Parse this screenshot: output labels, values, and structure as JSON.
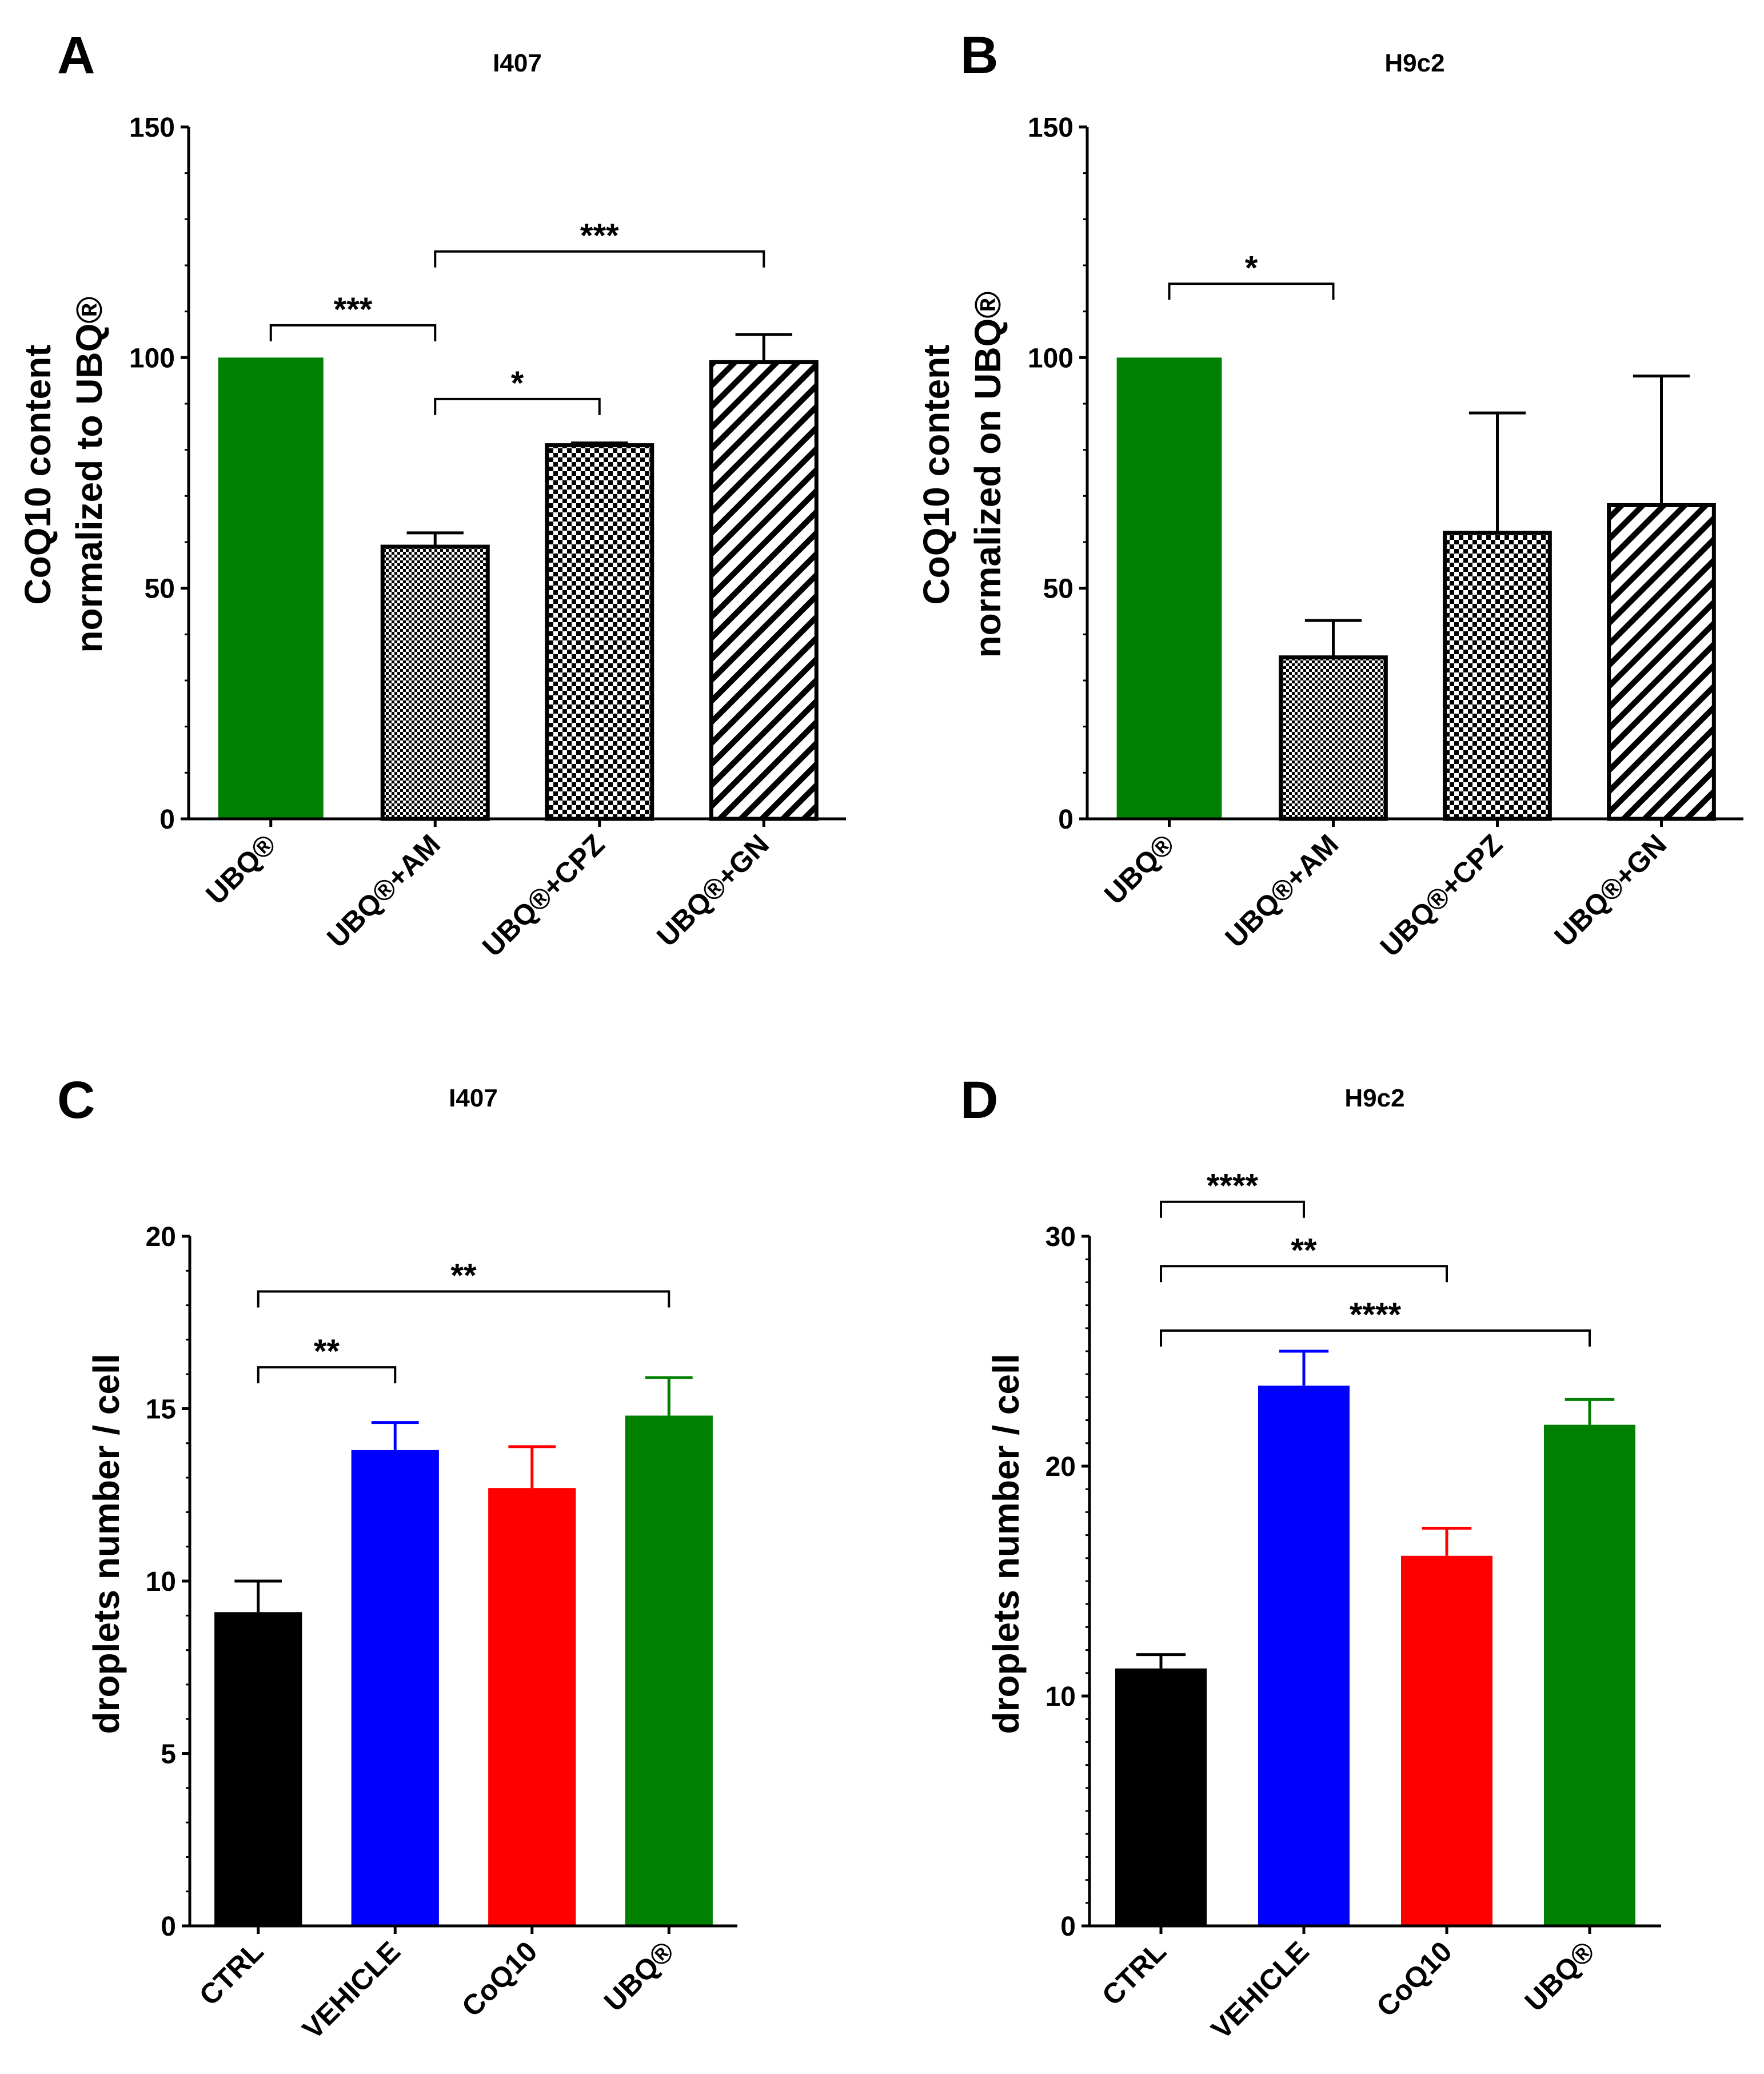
{
  "chart_data": [
    {
      "type": "bar",
      "panel": "A",
      "title": "I407",
      "ylabel": [
        "CoQ10 content",
        "normalized to UBQ®"
      ],
      "ylim": [
        0,
        150
      ],
      "yticks": [
        0,
        50,
        100,
        150
      ],
      "categories": [
        "UBQ®",
        "UBQ®+AM",
        "UBQ®+CPZ",
        "UBQ®+GN"
      ],
      "values": [
        100,
        59,
        81,
        99
      ],
      "errors": [
        0,
        3,
        0.5,
        6
      ],
      "fills": [
        "green",
        "dense-check",
        "check",
        "diagonal"
      ],
      "colors": {
        "green": "#008000",
        "outline": "#000000"
      },
      "significance": [
        {
          "from": 0,
          "to": 1,
          "y": 107,
          "label": "***"
        },
        {
          "from": 1,
          "to": 3,
          "y": 123,
          "label": "***"
        },
        {
          "from": 1,
          "to": 2,
          "y": 91,
          "label": "*"
        }
      ]
    },
    {
      "type": "bar",
      "panel": "B",
      "title": "H9c2",
      "ylabel": [
        "CoQ10 content",
        "normalized on UBQ®"
      ],
      "ylim": [
        0,
        150
      ],
      "yticks": [
        0,
        50,
        100,
        150
      ],
      "categories": [
        "UBQ®",
        "UBQ®+AM",
        "UBQ®+CPZ",
        "UBQ®+GN"
      ],
      "values": [
        100,
        35,
        62,
        68
      ],
      "errors": [
        0,
        8,
        26,
        28
      ],
      "fills": [
        "green",
        "dense-check",
        "check",
        "diagonal"
      ],
      "colors": {
        "green": "#008000",
        "outline": "#000000"
      },
      "significance": [
        {
          "from": 0,
          "to": 1,
          "y": 116,
          "label": "*"
        }
      ]
    },
    {
      "type": "bar",
      "panel": "C",
      "title": "I407",
      "ylabel": [
        "droplets number / cell"
      ],
      "ylim": [
        0,
        20
      ],
      "yticks": [
        0,
        5,
        10,
        15,
        20
      ],
      "categories": [
        "CTRL",
        "VEHICLE",
        "CoQ10",
        "UBQ®"
      ],
      "values": [
        9.1,
        13.8,
        12.7,
        14.8
      ],
      "errors": [
        0.9,
        0.8,
        1.2,
        1.1
      ],
      "fills": [
        "#000000",
        "#0000ff",
        "#ff0000",
        "#008000"
      ],
      "colors": {
        "CTRL": "#000000",
        "VEHICLE": "#0000ff",
        "CoQ10": "#ff0000",
        "UBQ®": "#008000"
      },
      "significance": [
        {
          "from": 0,
          "to": 1,
          "y": 16.2,
          "label": "**"
        },
        {
          "from": 0,
          "to": 3,
          "y": 18.4,
          "label": "**"
        }
      ]
    },
    {
      "type": "bar",
      "panel": "D",
      "title": "H9c2",
      "ylabel": [
        "droplets number / cell"
      ],
      "ylim": [
        0,
        30
      ],
      "yticks": [
        0,
        10,
        20,
        30
      ],
      "categories": [
        "CTRL",
        "VEHICLE",
        "CoQ10",
        "UBQ®"
      ],
      "values": [
        11.2,
        23.5,
        16.1,
        21.8
      ],
      "errors": [
        0.6,
        1.5,
        1.2,
        1.1
      ],
      "fills": [
        "#000000",
        "#0000ff",
        "#ff0000",
        "#008000"
      ],
      "colors": {
        "CTRL": "#000000",
        "VEHICLE": "#0000ff",
        "CoQ10": "#ff0000",
        "UBQ®": "#008000"
      },
      "significance": [
        {
          "from": 0,
          "to": 1,
          "y": 31.5,
          "label": "****"
        },
        {
          "from": 0,
          "to": 2,
          "y": 28.7,
          "label": "**"
        },
        {
          "from": 0,
          "to": 3,
          "y": 25.9,
          "label": "****"
        }
      ]
    }
  ]
}
